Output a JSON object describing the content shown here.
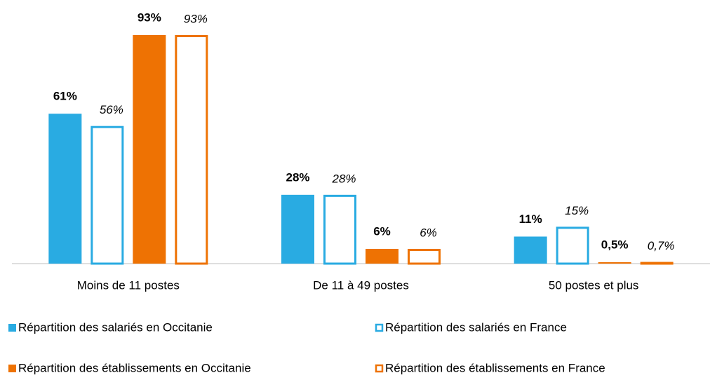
{
  "chart_data": {
    "type": "bar",
    "categories": [
      "Moins de 11 postes",
      "De 11 à 49 postes",
      "50 postes et plus"
    ],
    "series": [
      {
        "name": "Répartition des salariés en Occitanie",
        "color": "#29abe2",
        "style": "filled",
        "values": [
          61,
          28,
          11
        ],
        "value_labels": [
          "61%",
          "28%",
          "11%"
        ]
      },
      {
        "name": "Répartition des salariés en France",
        "color": "#29abe2",
        "style": "outline",
        "values": [
          56,
          28,
          15
        ],
        "value_labels": [
          "56%",
          "28%",
          "15%"
        ]
      },
      {
        "name": "Répartition des établissements en Occitanie",
        "color": "#ee7203",
        "style": "filled",
        "values": [
          93,
          6,
          0.5
        ],
        "value_labels": [
          "93%",
          "6%",
          "0,5%"
        ]
      },
      {
        "name": "Répartition des établissements en France",
        "color": "#ee7203",
        "style": "outline",
        "values": [
          93,
          6,
          0.7
        ],
        "value_labels": [
          "93%",
          "6%",
          "0,7%"
        ]
      }
    ],
    "legend": "bottom"
  }
}
